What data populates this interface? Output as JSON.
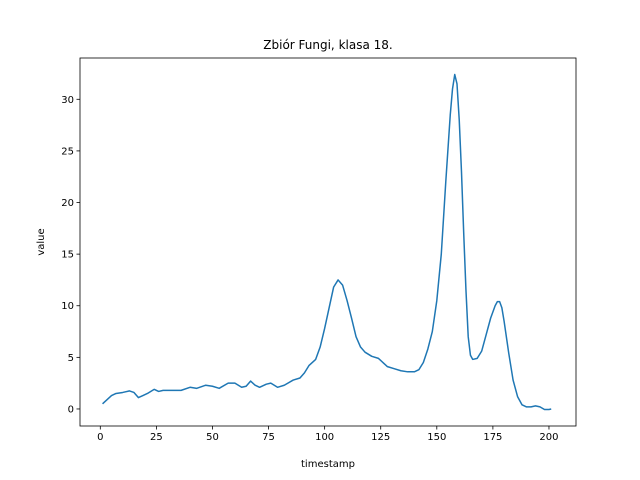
{
  "chart_data": {
    "type": "line",
    "title": "Zbiór Fungi, klasa 18.",
    "xlabel": "timestamp",
    "ylabel": "value",
    "x": [
      1,
      3,
      5,
      7,
      10,
      13,
      15,
      17,
      19,
      21,
      24,
      26,
      28,
      32,
      36,
      40,
      43,
      47,
      50,
      53,
      57,
      60,
      63,
      65,
      67,
      69,
      71,
      74,
      76,
      79,
      82,
      86,
      89,
      91,
      93,
      96,
      98,
      100,
      102,
      104,
      106,
      108,
      110,
      112,
      114,
      116,
      118,
      121,
      124,
      126,
      128,
      131,
      134,
      137,
      140,
      142,
      144,
      146,
      148,
      150,
      152,
      154,
      156,
      157,
      158,
      159,
      160,
      161,
      162,
      163,
      164,
      165,
      166,
      168,
      170,
      172,
      174,
      176,
      177,
      178,
      179,
      180,
      182,
      184,
      186,
      188,
      190,
      192,
      194,
      196,
      198,
      200,
      201
    ],
    "series": [
      {
        "color": "#1f77b4",
        "values": [
          0.5,
          0.9,
          1.3,
          1.5,
          1.6,
          1.75,
          1.6,
          1.1,
          1.3,
          1.5,
          1.9,
          1.7,
          1.8,
          1.8,
          1.8,
          2.1,
          2.0,
          2.3,
          2.2,
          2.0,
          2.5,
          2.5,
          2.1,
          2.2,
          2.7,
          2.3,
          2.1,
          2.4,
          2.5,
          2.1,
          2.3,
          2.8,
          3.0,
          3.5,
          4.2,
          4.8,
          6.0,
          7.8,
          9.8,
          11.8,
          12.5,
          12.0,
          10.5,
          8.8,
          7.0,
          6.0,
          5.5,
          5.1,
          4.9,
          4.5,
          4.1,
          3.9,
          3.7,
          3.6,
          3.6,
          3.8,
          4.5,
          5.8,
          7.5,
          10.5,
          15,
          22,
          28.5,
          31,
          32.4,
          31.5,
          28,
          23,
          17,
          11.5,
          7,
          5.2,
          4.8,
          4.9,
          5.6,
          7.2,
          8.8,
          10,
          10.4,
          10.4,
          9.8,
          8.5,
          5.5,
          2.8,
          1.2,
          0.4,
          0.2,
          0.2,
          0.3,
          0.2,
          -0.05,
          -0.05,
          0
        ]
      }
    ],
    "xlim": [
      -9.05,
      212.05
    ],
    "ylim": [
      -1.65,
      34.0
    ],
    "xticks": [
      0,
      25,
      50,
      75,
      100,
      125,
      150,
      175,
      200
    ],
    "yticks": [
      0,
      5,
      10,
      15,
      20,
      25,
      30
    ]
  }
}
